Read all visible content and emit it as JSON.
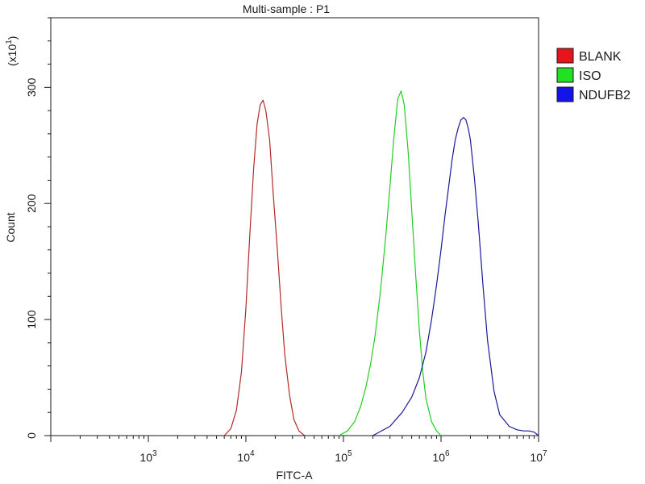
{
  "chart_data": {
    "type": "line",
    "title": "Multi-sample : P1",
    "xlabel": "FITC-A",
    "ylabel": "Count",
    "y_multiplier_label": "(x10",
    "y_multiplier_exp": "1",
    "y_multiplier_close": ")",
    "x_scale": "log",
    "xlim": [
      100,
      10000000
    ],
    "ylim": [
      0,
      360
    ],
    "x_ticks": [
      {
        "base": "10",
        "exp": "3",
        "value": 1000
      },
      {
        "base": "10",
        "exp": "4",
        "value": 10000
      },
      {
        "base": "10",
        "exp": "5",
        "value": 100000
      },
      {
        "base": "10",
        "exp": "6",
        "value": 1000000
      },
      {
        "base": "10",
        "exp": "7",
        "value": 10000000
      }
    ],
    "y_ticks": [
      {
        "label": "0",
        "value": 0
      },
      {
        "label": "100",
        "value": 100
      },
      {
        "label": "200",
        "value": 200
      },
      {
        "label": "300",
        "value": 300
      }
    ],
    "legend_position": "top-right-outside",
    "series": [
      {
        "name": "BLANK",
        "color": "#b32a2a",
        "swatch": "#e8141c",
        "x": [
          6000,
          7000,
          8000,
          9000,
          10000,
          11000,
          12000,
          13000,
          14000,
          15000,
          16000,
          17500,
          19000,
          21000,
          23000,
          25000,
          28000,
          31000,
          35000,
          40000
        ],
        "y": [
          0,
          6,
          22,
          55,
          110,
          175,
          230,
          268,
          285,
          289,
          280,
          255,
          210,
          160,
          110,
          70,
          35,
          14,
          4,
          0
        ]
      },
      {
        "name": "ISO",
        "color": "#22cc22",
        "swatch": "#22e022",
        "x": [
          90000,
          110000,
          130000,
          150000,
          170000,
          190000,
          210000,
          240000,
          270000,
          300000,
          330000,
          360000,
          390000,
          420000,
          460000,
          500000,
          550000,
          600000,
          650000,
          700000,
          800000,
          900000,
          1000000
        ],
        "y": [
          0,
          4,
          12,
          25,
          42,
          62,
          85,
          125,
          170,
          215,
          258,
          290,
          297,
          285,
          245,
          195,
          138,
          90,
          55,
          32,
          12,
          4,
          0
        ]
      },
      {
        "name": "NDUFB2",
        "color": "#1a1a99",
        "swatch": "#1414e8",
        "x": [
          200000,
          300000,
          400000,
          500000,
          600000,
          700000,
          800000,
          900000,
          1000000,
          1100000,
          1200000,
          1300000,
          1400000,
          1500000,
          1600000,
          1700000,
          1800000,
          1900000,
          2000000,
          2200000,
          2400000,
          2700000,
          3000000,
          3500000,
          4000000,
          5000000,
          6000000,
          7000000,
          8000000,
          9000000,
          10000000
        ],
        "y": [
          0,
          8,
          20,
          33,
          50,
          72,
          100,
          130,
          160,
          190,
          215,
          238,
          255,
          265,
          272,
          274,
          272,
          265,
          255,
          222,
          185,
          128,
          82,
          38,
          18,
          8,
          5,
          4,
          4,
          3,
          0
        ]
      }
    ]
  }
}
